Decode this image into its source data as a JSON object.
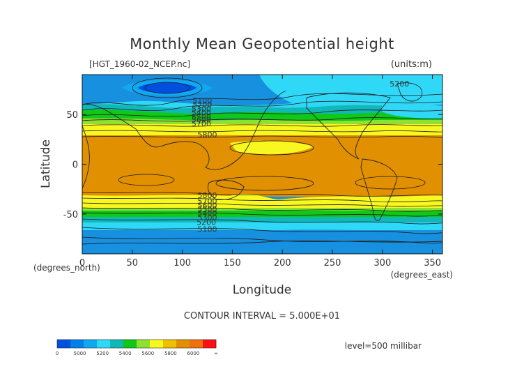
{
  "chart_data": {
    "type": "heatmap",
    "title": "Monthly Mean Geopotential height",
    "dataset_label": "[HGT_1960-02_NCEP.nc]",
    "units_label": "(units:m)",
    "xlabel": "Longitude",
    "ylabel": "Latitude",
    "x_unit_label": "(degrees_east)",
    "y_unit_label": "(degrees_north)",
    "xlim": [
      0,
      360
    ],
    "ylim": [
      -90,
      90
    ],
    "xticks": [
      0,
      50,
      100,
      150,
      200,
      250,
      300,
      350
    ],
    "yticks": [
      50,
      0,
      -50
    ],
    "contour_labels": [
      {
        "value": "5100",
        "lon": 120,
        "lat": 61
      },
      {
        "value": "5200",
        "lon": 120,
        "lat": 57
      },
      {
        "value": "5300",
        "lon": 119,
        "lat": 53
      },
      {
        "value": "5400",
        "lon": 119,
        "lat": 49
      },
      {
        "value": "5500",
        "lon": 119,
        "lat": 45
      },
      {
        "value": "5600",
        "lon": 119,
        "lat": 42
      },
      {
        "value": "5700",
        "lon": 119,
        "lat": 38
      },
      {
        "value": "5800",
        "lon": 125,
        "lat": 27
      },
      {
        "value": "5200",
        "lon": 317,
        "lat": 78
      },
      {
        "value": "5800",
        "lon": 125,
        "lat": -34
      },
      {
        "value": "5700",
        "lon": 125,
        "lat": -40
      },
      {
        "value": "5600",
        "lon": 125,
        "lat": -44
      },
      {
        "value": "5500",
        "lon": 125,
        "lat": -48
      },
      {
        "value": "5400",
        "lon": 125,
        "lat": -52
      },
      {
        "value": "5300",
        "lon": 125,
        "lat": -56
      },
      {
        "value": "5200",
        "lon": 124,
        "lat": -61
      },
      {
        "value": "5100",
        "lon": 125,
        "lat": -68
      }
    ],
    "contour_interval_text": "CONTOUR INTERVAL = 5.000E+01",
    "level_text": "level=500 millibar",
    "colorbar": {
      "colors": [
        "#0050e0",
        "#0080e8",
        "#10a8f0",
        "#30d8f8",
        "#10b8b8",
        "#10c818",
        "#90e030",
        "#f8f820",
        "#f0c000",
        "#e09000",
        "#f07010",
        "#ff1010"
      ],
      "tick_labels": [
        "0",
        "5000",
        "5200",
        "5400",
        "5600",
        "5800",
        "6000",
        "∞"
      ]
    }
  }
}
